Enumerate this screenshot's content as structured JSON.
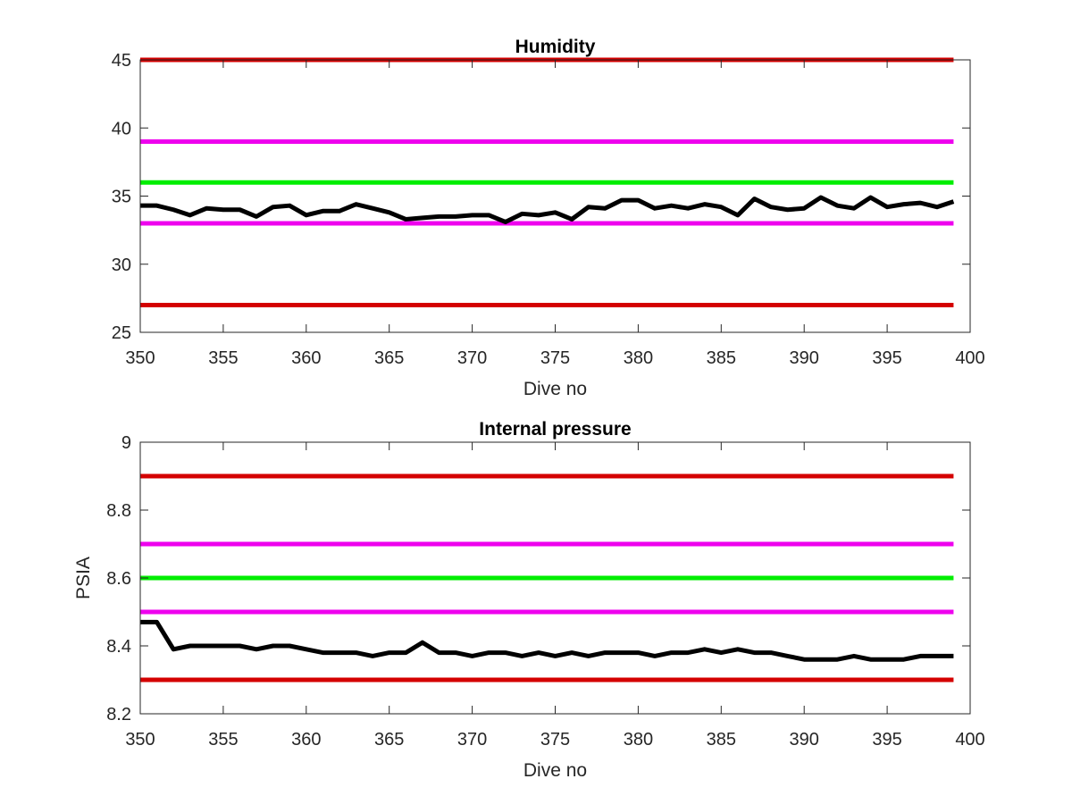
{
  "figure": {
    "colors": {
      "axis": "#262626",
      "red": "#d40000",
      "magenta": "#ee00ee",
      "green": "#00ee00",
      "data": "#000000",
      "background": "#ffffff"
    }
  },
  "chart_data": [
    {
      "type": "line",
      "title": "Humidity",
      "xlabel": "Dive no",
      "ylabel": "",
      "xlim": [
        350,
        400
      ],
      "ylim": [
        25,
        45
      ],
      "xticks": [
        350,
        355,
        360,
        365,
        370,
        375,
        380,
        385,
        390,
        395,
        400
      ],
      "yticks": [
        25,
        30,
        35,
        40,
        45
      ],
      "grid": false,
      "x": [
        350,
        351,
        352,
        353,
        354,
        355,
        356,
        357,
        358,
        359,
        360,
        361,
        362,
        363,
        364,
        365,
        366,
        367,
        368,
        369,
        370,
        371,
        372,
        373,
        374,
        375,
        376,
        377,
        378,
        379,
        380,
        381,
        382,
        383,
        384,
        385,
        386,
        387,
        388,
        389,
        390,
        391,
        392,
        393,
        394,
        395,
        396,
        397,
        398,
        399
      ],
      "series": [
        {
          "color": "data",
          "values": [
            34.3,
            34.3,
            34.0,
            33.6,
            34.1,
            34.0,
            34.0,
            33.5,
            34.2,
            34.3,
            33.6,
            33.9,
            33.9,
            34.4,
            34.1,
            33.8,
            33.3,
            33.4,
            33.5,
            33.5,
            33.6,
            33.6,
            33.1,
            33.7,
            33.6,
            33.8,
            33.3,
            34.2,
            34.1,
            34.7,
            34.7,
            34.1,
            34.3,
            34.1,
            34.4,
            34.2,
            33.6,
            34.8,
            34.2,
            34.0,
            34.1,
            34.9,
            34.3,
            34.1,
            34.9,
            34.2,
            34.4,
            34.5,
            34.2,
            34.6
          ]
        }
      ],
      "reference_lines": [
        {
          "y": 45,
          "color": "red"
        },
        {
          "y": 39,
          "color": "magenta"
        },
        {
          "y": 36,
          "color": "green"
        },
        {
          "y": 33,
          "color": "magenta"
        },
        {
          "y": 27,
          "color": "red"
        }
      ]
    },
    {
      "type": "line",
      "title": "Internal pressure",
      "xlabel": "Dive no",
      "ylabel": "PSIA",
      "xlim": [
        350,
        400
      ],
      "ylim": [
        8.2,
        9
      ],
      "xticks": [
        350,
        355,
        360,
        365,
        370,
        375,
        380,
        385,
        390,
        395,
        400
      ],
      "yticks": [
        8.2,
        8.4,
        8.6,
        8.8,
        9
      ],
      "ytick_labels": [
        "8.2",
        "8.4",
        "8.6",
        "8.8",
        "9"
      ],
      "grid": false,
      "x": [
        350,
        351,
        352,
        353,
        354,
        355,
        356,
        357,
        358,
        359,
        360,
        361,
        362,
        363,
        364,
        365,
        366,
        367,
        368,
        369,
        370,
        371,
        372,
        373,
        374,
        375,
        376,
        377,
        378,
        379,
        380,
        381,
        382,
        383,
        384,
        385,
        386,
        387,
        388,
        389,
        390,
        391,
        392,
        393,
        394,
        395,
        396,
        397,
        398,
        399
      ],
      "series": [
        {
          "color": "data",
          "values": [
            8.47,
            8.47,
            8.39,
            8.4,
            8.4,
            8.4,
            8.4,
            8.39,
            8.4,
            8.4,
            8.39,
            8.38,
            8.38,
            8.38,
            8.37,
            8.38,
            8.38,
            8.41,
            8.38,
            8.38,
            8.37,
            8.38,
            8.38,
            8.37,
            8.38,
            8.37,
            8.38,
            8.37,
            8.38,
            8.38,
            8.38,
            8.37,
            8.38,
            8.38,
            8.39,
            8.38,
            8.39,
            8.38,
            8.38,
            8.37,
            8.36,
            8.36,
            8.36,
            8.37,
            8.36,
            8.36,
            8.36,
            8.37,
            8.37,
            8.37
          ]
        }
      ],
      "reference_lines": [
        {
          "y": 8.9,
          "color": "red"
        },
        {
          "y": 8.7,
          "color": "magenta"
        },
        {
          "y": 8.6,
          "color": "green"
        },
        {
          "y": 8.5,
          "color": "magenta"
        },
        {
          "y": 8.3,
          "color": "red"
        }
      ]
    }
  ]
}
